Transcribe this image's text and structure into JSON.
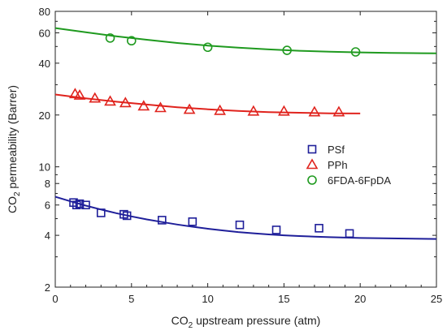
{
  "chart_data": {
    "type": "scatter",
    "xlabel": {
      "main": "CO",
      "sub": "2",
      "rest": " upstream pressure (atm)"
    },
    "ylabel": {
      "main": "CO",
      "sub": "2",
      "rest": " permeability (Barrer)"
    },
    "x_scale": "linear",
    "y_scale": "log",
    "xlim": [
      0,
      25
    ],
    "ylim": [
      2,
      80
    ],
    "x_ticks": [
      0,
      5,
      10,
      15,
      20,
      25
    ],
    "y_ticks": [
      2,
      4,
      6,
      8,
      10,
      20,
      40,
      60,
      80
    ],
    "grid": false,
    "legend_position": "right-middle",
    "series": [
      {
        "name": "PSf",
        "marker": "square",
        "color": "#1f1f9a",
        "points": [
          [
            1.2,
            6.2
          ],
          [
            1.4,
            6.0
          ],
          [
            1.6,
            6.1
          ],
          [
            2.0,
            6.0
          ],
          [
            3.0,
            5.4
          ],
          [
            4.5,
            5.3
          ],
          [
            4.7,
            5.2
          ],
          [
            7.0,
            4.9
          ],
          [
            9.0,
            4.8
          ],
          [
            12.1,
            4.6
          ],
          [
            14.5,
            4.3
          ],
          [
            17.3,
            4.4
          ],
          [
            19.3,
            4.1
          ]
        ],
        "fit": [
          [
            0,
            6.7
          ],
          [
            1,
            6.3
          ],
          [
            2,
            5.95
          ],
          [
            3,
            5.65
          ],
          [
            4,
            5.38
          ],
          [
            5,
            5.15
          ],
          [
            6,
            4.95
          ],
          [
            7,
            4.78
          ],
          [
            8,
            4.62
          ],
          [
            9,
            4.49
          ],
          [
            10,
            4.37
          ],
          [
            11,
            4.27
          ],
          [
            12,
            4.18
          ],
          [
            13,
            4.11
          ],
          [
            14,
            4.05
          ],
          [
            15,
            4.0
          ],
          [
            16,
            3.96
          ],
          [
            17,
            3.93
          ],
          [
            18,
            3.9
          ],
          [
            19,
            3.88
          ],
          [
            20,
            3.86
          ],
          [
            21,
            3.85
          ],
          [
            22,
            3.84
          ],
          [
            23,
            3.83
          ],
          [
            24,
            3.82
          ],
          [
            25,
            3.81
          ]
        ]
      },
      {
        "name": "PPh",
        "marker": "triangle",
        "color": "#e0231d",
        "points": [
          [
            1.3,
            26.5
          ],
          [
            1.6,
            26.0
          ],
          [
            2.6,
            25.0
          ],
          [
            3.6,
            24.0
          ],
          [
            4.6,
            23.5
          ],
          [
            5.8,
            22.5
          ],
          [
            6.9,
            22.0
          ],
          [
            8.8,
            21.5
          ],
          [
            10.8,
            21.2
          ],
          [
            13.0,
            21.0
          ],
          [
            15.0,
            21.0
          ],
          [
            17.0,
            20.8
          ],
          [
            18.6,
            20.8
          ]
        ],
        "fit": [
          [
            0,
            26.3
          ],
          [
            2,
            25.0
          ],
          [
            4,
            23.9
          ],
          [
            6,
            23.0
          ],
          [
            8,
            22.2
          ],
          [
            10,
            21.6
          ],
          [
            12,
            21.1
          ],
          [
            14,
            20.8
          ],
          [
            16,
            20.6
          ],
          [
            18,
            20.45
          ],
          [
            20,
            20.4
          ]
        ]
      },
      {
        "name": "6FDA-6FpDA",
        "marker": "circle",
        "color": "#1f9a1f",
        "points": [
          [
            3.6,
            56.0
          ],
          [
            5.0,
            54.0
          ],
          [
            10.0,
            49.5
          ],
          [
            15.2,
            47.5
          ],
          [
            19.7,
            46.5
          ]
        ],
        "fit": [
          [
            0,
            64.0
          ],
          [
            2,
            60.5
          ],
          [
            4,
            57.3
          ],
          [
            6,
            54.7
          ],
          [
            8,
            52.4
          ],
          [
            10,
            50.6
          ],
          [
            12,
            49.2
          ],
          [
            14,
            48.1
          ],
          [
            16,
            47.2
          ],
          [
            18,
            46.6
          ],
          [
            20,
            46.2
          ],
          [
            22,
            45.9
          ],
          [
            24,
            45.7
          ],
          [
            25,
            45.6
          ]
        ]
      }
    ]
  }
}
